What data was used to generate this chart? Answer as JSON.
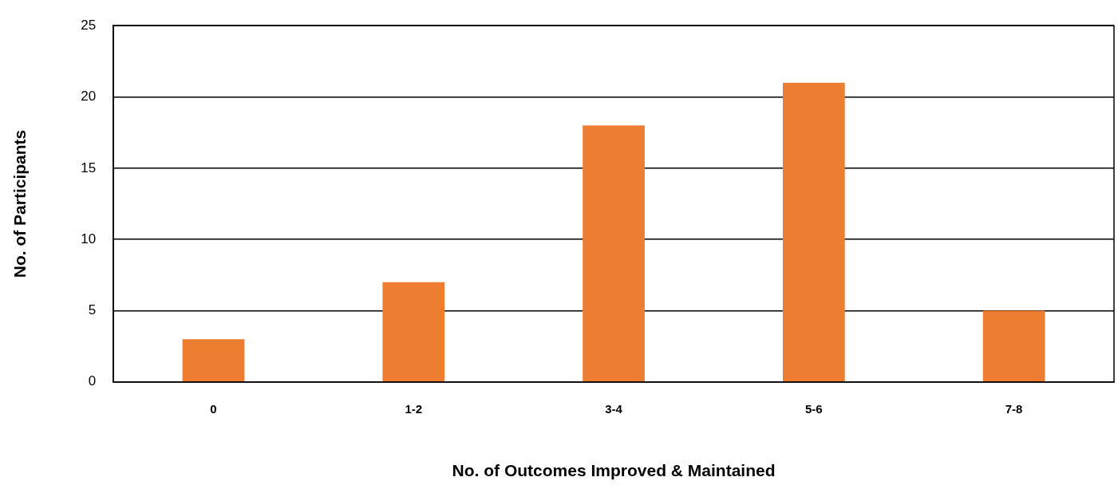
{
  "chart_data": {
    "type": "bar",
    "xlabel": "No. of Outcomes Improved & Maintained",
    "ylabel": "No. of Participants",
    "categories": [
      "0",
      "1-2",
      "3-4",
      "5-6",
      "7-8"
    ],
    "series": [
      {
        "color": "#ed7d31",
        "values": [
          3,
          7,
          18,
          21,
          5
        ]
      }
    ],
    "ylim": [
      0,
      25
    ],
    "yticks": [
      0,
      5,
      10,
      15,
      20,
      25
    ],
    "grid": "y",
    "legend": false
  }
}
